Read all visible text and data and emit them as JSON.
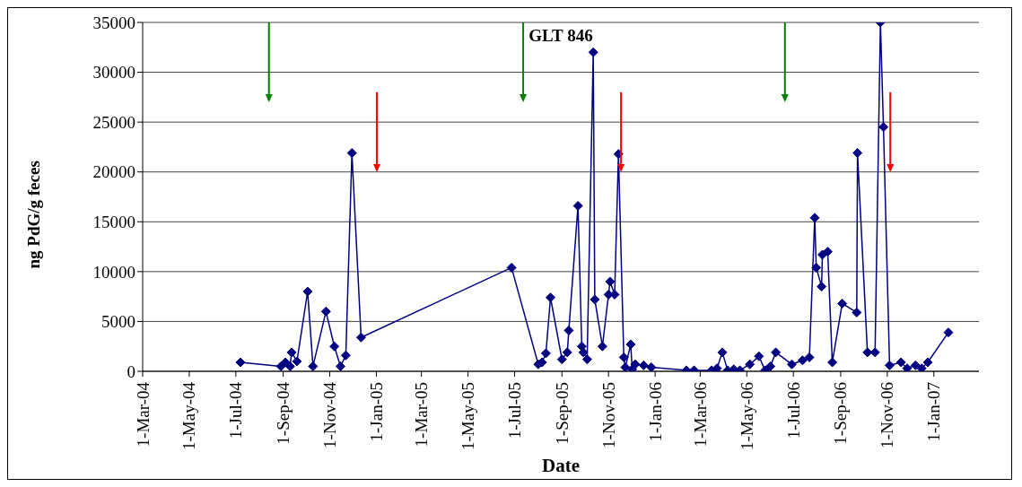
{
  "chart_data": {
    "type": "line",
    "title": "GLT 846",
    "xlabel": "Date",
    "ylabel": "ng PdG/g feces",
    "x": [
      "2004-07-07",
      "2004-08-29",
      "2004-09-04",
      "2004-09-10",
      "2004-09-12",
      "2004-09-19",
      "2004-10-03",
      "2004-10-10",
      "2004-10-27",
      "2004-11-07",
      "2004-11-15",
      "2004-11-22",
      "2004-11-30",
      "2004-12-12",
      "2005-06-27",
      "2005-08-01",
      "2005-08-06",
      "2005-08-11",
      "2005-08-17",
      "2005-09-01",
      "2005-09-08",
      "2005-09-10",
      "2005-09-22",
      "2005-09-27",
      "2005-09-29",
      "2005-10-04",
      "2005-10-12",
      "2005-10-14",
      "2005-10-24",
      "2005-11-01",
      "2005-11-03",
      "2005-11-09",
      "2005-11-14",
      "2005-11-21",
      "2005-11-23",
      "2005-11-30",
      "2005-12-02",
      "2005-12-06",
      "2005-12-17",
      "2005-12-27",
      "2006-02-11",
      "2006-02-21",
      "2006-03-16",
      "2006-03-23",
      "2006-03-30",
      "2006-04-06",
      "2006-04-14",
      "2006-04-22",
      "2006-05-05",
      "2006-05-17",
      "2006-05-25",
      "2006-06-01",
      "2006-06-08",
      "2006-06-29",
      "2006-07-13",
      "2006-07-22",
      "2006-07-29",
      "2006-07-31",
      "2006-08-07",
      "2006-08-08",
      "2006-08-15",
      "2006-08-21",
      "2006-09-03",
      "2006-09-22",
      "2006-09-23",
      "2006-10-06",
      "2006-10-16",
      "2006-10-23",
      "2006-10-27",
      "2006-11-04",
      "2006-11-19",
      "2006-11-27",
      "2006-12-08",
      "2006-12-16",
      "2006-12-24",
      "2007-01-20"
    ],
    "series": [
      {
        "color": "#000080",
        "values": [
          900,
          500,
          900,
          500,
          1900,
          1000,
          8000,
          500,
          6000,
          2500,
          500,
          1600,
          21900,
          3400,
          10400,
          700,
          900,
          1800,
          7400,
          1200,
          1900,
          4100,
          16600,
          2500,
          1900,
          1200,
          32000,
          7200,
          2500,
          7700,
          9000,
          7700,
          21800,
          1400,
          400,
          2700,
          200,
          700,
          600,
          400,
          100,
          100,
          100,
          300,
          1900,
          100,
          200,
          100,
          700,
          1500,
          100,
          500,
          1900,
          700,
          1100,
          1400,
          15400,
          10400,
          8500,
          11700,
          12000,
          900,
          6800,
          5900,
          21900,
          1900,
          1900,
          35000,
          24500,
          600,
          900,
          300,
          600,
          300,
          900,
          3900
        ]
      }
    ],
    "xlim": [
      "2004-03-01",
      "2007-03-01"
    ],
    "xticks": [
      {
        "value": "2004-03-01",
        "label": "1-Mar-04"
      },
      {
        "value": "2004-05-01",
        "label": "1-May-04"
      },
      {
        "value": "2004-07-01",
        "label": "1-Jul-04"
      },
      {
        "value": "2004-09-01",
        "label": "1-Sep-04"
      },
      {
        "value": "2004-11-01",
        "label": "1-Nov-04"
      },
      {
        "value": "2005-01-01",
        "label": "1-Jan-05"
      },
      {
        "value": "2005-03-01",
        "label": "1-Mar-05"
      },
      {
        "value": "2005-05-01",
        "label": "1-May-05"
      },
      {
        "value": "2005-07-01",
        "label": "1-Jul-05"
      },
      {
        "value": "2005-09-01",
        "label": "1-Sep-05"
      },
      {
        "value": "2005-11-01",
        "label": "1-Nov-05"
      },
      {
        "value": "2006-01-01",
        "label": "1-Jan-06"
      },
      {
        "value": "2006-03-01",
        "label": "1-Mar-06"
      },
      {
        "value": "2006-05-01",
        "label": "1-May-06"
      },
      {
        "value": "2006-07-01",
        "label": "1-Jul-06"
      },
      {
        "value": "2006-09-01",
        "label": "1-Sep-06"
      },
      {
        "value": "2006-11-01",
        "label": "1-Nov-06"
      },
      {
        "value": "2007-01-01",
        "label": "1-Jan-07"
      }
    ],
    "ylim": [
      0,
      35000
    ],
    "yticks": [
      0,
      5000,
      10000,
      15000,
      20000,
      25000,
      30000,
      35000
    ],
    "grid": "y",
    "marker": "diamond",
    "line_style": "solid"
  }
}
